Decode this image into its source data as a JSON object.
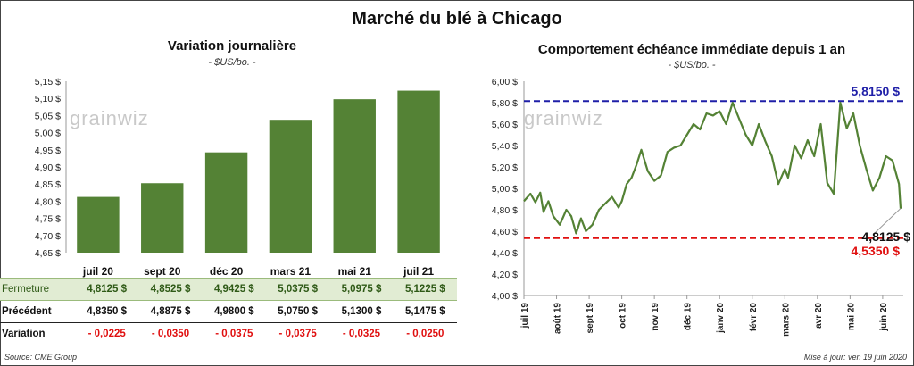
{
  "title": "Marché du blé à Chicago",
  "left_panel": {
    "title": "Variation journalière",
    "subtitle": "- $US/bo. -",
    "watermark": "grainwiz"
  },
  "right_panel": {
    "title": "Comportement  échéance immédiate depuis 1 an",
    "subtitle": "- $US/bo. -",
    "watermark": "grainwiz",
    "annotations": {
      "max_label": "5,8150 $",
      "last_label": "4,8125 $",
      "min_label": "4,5350 $"
    }
  },
  "table": {
    "rows": [
      {
        "label": "Fermeture",
        "values": [
          "4,8125  $",
          "4,8525  $",
          "4,9425  $",
          "5,0375  $",
          "5,0975  $",
          "5,1225  $"
        ]
      },
      {
        "label": "Précédent",
        "values": [
          "4,8350  $",
          "4,8875  $",
          "4,9800  $",
          "5,0750  $",
          "5,1300  $",
          "5,1475  $"
        ]
      },
      {
        "label": "Variation",
        "values": [
          "- 0,0225",
          "- 0,0350",
          "- 0,0375",
          "- 0,0375",
          "- 0,0325",
          "- 0,0250"
        ]
      }
    ]
  },
  "footer": {
    "source": "Source: CME Group",
    "update": "Mise à jour: ven 19 juin 2020"
  },
  "colors": {
    "bar": "#548235",
    "line": "#548235",
    "max_line": "#1f1fa8",
    "min_line": "#e01010",
    "last_label": "#111111"
  },
  "chart_data": [
    {
      "type": "bar",
      "title": "Variation journalière",
      "categories": [
        "juil 20",
        "sept 20",
        "déc 20",
        "mars 21",
        "mai 21",
        "juil 21"
      ],
      "values": [
        4.8125,
        4.8525,
        4.9425,
        5.0375,
        5.0975,
        5.1225
      ],
      "ylim": [
        4.65,
        5.15
      ],
      "yticks": [
        "4,65 $",
        "4,70 $",
        "4,75 $",
        "4,80 $",
        "4,85 $",
        "4,90 $",
        "4,95 $",
        "5,00 $",
        "5,05 $",
        "5,10 $",
        "5,15 $"
      ],
      "grid": false
    },
    {
      "type": "line",
      "title": "Comportement  échéance immédiate depuis 1 an",
      "xlabels": [
        "juil 19",
        "août 19",
        "sept 19",
        "oct 19",
        "nov 19",
        "déc 19",
        "janv 20",
        "févr 20",
        "mars 20",
        "avr 20",
        "mai 20",
        "juin 20"
      ],
      "x_months": [
        0,
        0.2,
        0.35,
        0.5,
        0.6,
        0.75,
        0.9,
        1.1,
        1.3,
        1.45,
        1.6,
        1.75,
        1.9,
        2.1,
        2.3,
        2.5,
        2.7,
        2.9,
        3.0,
        3.15,
        3.3,
        3.45,
        3.6,
        3.8,
        4.0,
        4.2,
        4.4,
        4.6,
        4.8,
        5.0,
        5.2,
        5.4,
        5.6,
        5.8,
        6.0,
        6.2,
        6.4,
        6.6,
        6.8,
        7.0,
        7.2,
        7.4,
        7.6,
        7.8,
        8.0,
        8.1,
        8.3,
        8.5,
        8.7,
        8.9,
        9.1,
        9.3,
        9.5,
        9.7,
        9.9,
        10.1,
        10.3,
        10.5,
        10.7,
        10.9,
        11.1,
        11.3,
        11.5,
        11.55
      ],
      "values": [
        4.88,
        4.95,
        4.87,
        4.96,
        4.78,
        4.88,
        4.74,
        4.66,
        4.8,
        4.74,
        4.58,
        4.72,
        4.6,
        4.66,
        4.8,
        4.86,
        4.92,
        4.82,
        4.88,
        5.04,
        5.1,
        5.22,
        5.36,
        5.16,
        5.07,
        5.12,
        5.34,
        5.38,
        5.4,
        5.5,
        5.6,
        5.55,
        5.7,
        5.68,
        5.72,
        5.6,
        5.8,
        5.65,
        5.5,
        5.4,
        5.6,
        5.44,
        5.3,
        5.04,
        5.18,
        5.1,
        5.4,
        5.28,
        5.45,
        5.3,
        5.6,
        5.05,
        4.95,
        5.8,
        5.56,
        5.7,
        5.4,
        5.18,
        4.98,
        5.1,
        5.3,
        5.26,
        5.04,
        4.81
      ],
      "ylim": [
        4.0,
        6.0
      ],
      "yticks": [
        "4,00 $",
        "4,20 $",
        "4,40 $",
        "4,60 $",
        "4,80 $",
        "5,00 $",
        "5,20 $",
        "5,40 $",
        "5,60 $",
        "5,80 $",
        "6,00 $"
      ],
      "max_value": 5.815,
      "min_value": 4.535,
      "last_value": 4.8125,
      "grid": false
    }
  ]
}
